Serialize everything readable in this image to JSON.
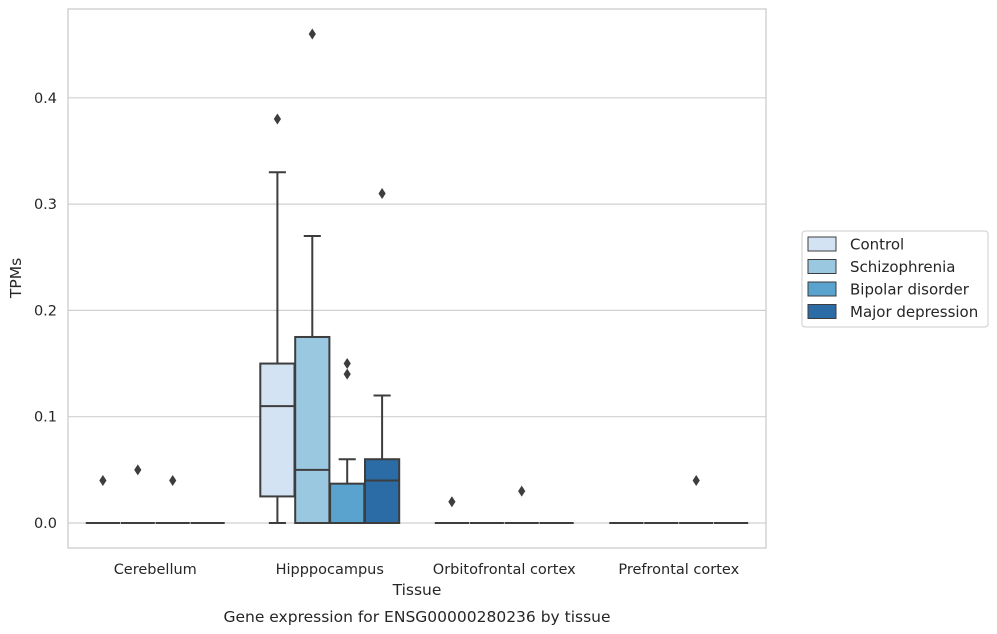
{
  "chart_data": {
    "type": "box",
    "xlabel": "Tissue",
    "ylabel": "TPMs",
    "caption": "Gene expression for ENSG00000280236 by tissue",
    "ylim": [
      -0.023,
      0.482
    ],
    "y_ticks": [
      0.0,
      0.1,
      0.2,
      0.3,
      0.4
    ],
    "y_tick_labels": [
      "0.0",
      "0.1",
      "0.2",
      "0.3",
      "0.4"
    ],
    "grid": "horizontal",
    "legend_position": "right",
    "categories": [
      "Cerebellum",
      "Hipppocampus",
      "Orbitofrontal cortex",
      "Prefrontal cortex"
    ],
    "series": [
      {
        "name": "Control",
        "color": "#d3e3f3",
        "boxes": [
          {
            "category": "Cerebellum",
            "whislo": 0.0,
            "q1": 0.0,
            "med": 0.0,
            "q3": 0.0,
            "whishi": 0.0,
            "fliers": [
              0.04
            ]
          },
          {
            "category": "Hipppocampus",
            "whislo": 0.0,
            "q1": 0.025,
            "med": 0.11,
            "q3": 0.15,
            "whishi": 0.33,
            "fliers": [
              0.38
            ]
          },
          {
            "category": "Orbitofrontal cortex",
            "whislo": 0.0,
            "q1": 0.0,
            "med": 0.0,
            "q3": 0.0,
            "whishi": 0.0,
            "fliers": [
              0.02
            ]
          },
          {
            "category": "Prefrontal cortex",
            "whislo": 0.0,
            "q1": 0.0,
            "med": 0.0,
            "q3": 0.0,
            "whishi": 0.0,
            "fliers": []
          }
        ]
      },
      {
        "name": "Schizophrenia",
        "color": "#9ac8e0",
        "boxes": [
          {
            "category": "Cerebellum",
            "whislo": 0.0,
            "q1": 0.0,
            "med": 0.0,
            "q3": 0.0,
            "whishi": 0.0,
            "fliers": [
              0.05
            ]
          },
          {
            "category": "Hipppocampus",
            "whislo": 0.0,
            "q1": 0.0,
            "med": 0.05,
            "q3": 0.175,
            "whishi": 0.27,
            "fliers": [
              0.46
            ]
          },
          {
            "category": "Orbitofrontal cortex",
            "whislo": 0.0,
            "q1": 0.0,
            "med": 0.0,
            "q3": 0.0,
            "whishi": 0.0,
            "fliers": []
          },
          {
            "category": "Prefrontal cortex",
            "whislo": 0.0,
            "q1": 0.0,
            "med": 0.0,
            "q3": 0.0,
            "whishi": 0.0,
            "fliers": []
          }
        ]
      },
      {
        "name": "Bipolar disorder",
        "color": "#5ba3cf",
        "boxes": [
          {
            "category": "Cerebellum",
            "whislo": 0.0,
            "q1": 0.0,
            "med": 0.0,
            "q3": 0.0,
            "whishi": 0.0,
            "fliers": [
              0.04
            ]
          },
          {
            "category": "Hipppocampus",
            "whislo": 0.0,
            "q1": 0.0,
            "med": 0.0,
            "q3": 0.037,
            "whishi": 0.06,
            "fliers": [
              0.14,
              0.15
            ]
          },
          {
            "category": "Orbitofrontal cortex",
            "whislo": 0.0,
            "q1": 0.0,
            "med": 0.0,
            "q3": 0.0,
            "whishi": 0.0,
            "fliers": [
              0.03
            ]
          },
          {
            "category": "Prefrontal cortex",
            "whislo": 0.0,
            "q1": 0.0,
            "med": 0.0,
            "q3": 0.0,
            "whishi": 0.0,
            "fliers": [
              0.04
            ]
          }
        ]
      },
      {
        "name": "Major depression",
        "color": "#2b6ca6",
        "boxes": [
          {
            "category": "Cerebellum",
            "whislo": 0.0,
            "q1": 0.0,
            "med": 0.0,
            "q3": 0.0,
            "whishi": 0.0,
            "fliers": []
          },
          {
            "category": "Hipppocampus",
            "whislo": 0.0,
            "q1": 0.0,
            "med": 0.04,
            "q3": 0.06,
            "whishi": 0.12,
            "fliers": [
              0.31
            ]
          },
          {
            "category": "Orbitofrontal cortex",
            "whislo": 0.0,
            "q1": 0.0,
            "med": 0.0,
            "q3": 0.0,
            "whishi": 0.0,
            "fliers": []
          },
          {
            "category": "Prefrontal cortex",
            "whislo": 0.0,
            "q1": 0.0,
            "med": 0.0,
            "q3": 0.0,
            "whishi": 0.0,
            "fliers": []
          }
        ]
      }
    ]
  }
}
